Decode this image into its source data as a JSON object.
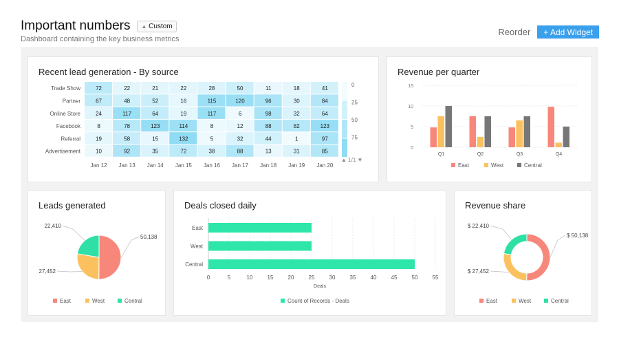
{
  "header": {
    "title": "Important numbers",
    "badge": "Custom",
    "badge_icon": "user-icon",
    "subtitle": "Dashboard containing the key business metrics",
    "reorder_label": "Reorder",
    "add_widget_label": "+ Add Widget",
    "accent": "#3aa0ec"
  },
  "widgets": {
    "heatmap": {
      "title": "Recent lead generation - By source",
      "pager": "1/1"
    },
    "quarter": {
      "title": "Revenue per quarter"
    },
    "leads": {
      "title": "Leads generated"
    },
    "deals": {
      "title": "Deals closed daily"
    },
    "share": {
      "title": "Revenue share"
    }
  },
  "chart_data": [
    {
      "type": "heatmap",
      "rows": [
        "Trade Show",
        "Partner",
        "Online Store",
        "Facebook",
        "Referral",
        "Advertisement"
      ],
      "columns": [
        "Jan 12",
        "Jan 13",
        "Jan 14",
        "Jan 15",
        "Jan 16",
        "Jan 17",
        "Jan 18",
        "Jan 19",
        "Jan 20"
      ],
      "values": [
        [
          72,
          22,
          21,
          22,
          28,
          50,
          11,
          18,
          41
        ],
        [
          67,
          48,
          52,
          16,
          115,
          120,
          96,
          30,
          84
        ],
        [
          24,
          117,
          64,
          19,
          117,
          6,
          98,
          32,
          64
        ],
        [
          8,
          78,
          123,
          114,
          8,
          12,
          88,
          82,
          123
        ],
        [
          19,
          58,
          15,
          132,
          5,
          32,
          44,
          1,
          97
        ],
        [
          10,
          92,
          35,
          72,
          38,
          88,
          13,
          31,
          85
        ]
      ],
      "scale_labels": [
        "0",
        "25",
        "50",
        "75"
      ],
      "colors": [
        "#f2fbfe",
        "#8fdcf4"
      ]
    },
    {
      "type": "bar",
      "categories": [
        "Q1",
        "Q2",
        "Q3",
        "Q4"
      ],
      "ylim": [
        0,
        15
      ],
      "yticks": [
        0,
        5,
        10,
        15
      ],
      "grid": true,
      "legend": "bottom",
      "series": [
        {
          "name": "East",
          "color": "#f8877b",
          "values": [
            4.8,
            7.5,
            4.8,
            9.8
          ]
        },
        {
          "name": "West",
          "color": "#fbc15e",
          "values": [
            7.5,
            2.5,
            6.5,
            1.1
          ]
        },
        {
          "name": "Central",
          "color": "#777777",
          "values": [
            10,
            7.5,
            7.5,
            5
          ]
        }
      ]
    },
    {
      "type": "pie",
      "legend": "bottom",
      "slices": [
        {
          "name": "East",
          "value": 50138,
          "label": "50,138",
          "color": "#f8877b"
        },
        {
          "name": "West",
          "value": 27452,
          "label": "27,452",
          "color": "#fbc15e"
        },
        {
          "name": "Central",
          "value": 22410,
          "label": "22,410",
          "color": "#2ee0a6"
        }
      ]
    },
    {
      "type": "bar",
      "orientation": "horizontal",
      "categories": [
        "East",
        "West",
        "Central"
      ],
      "values": [
        25,
        25,
        50
      ],
      "xlim": [
        0,
        55
      ],
      "xticks": [
        0,
        5,
        10,
        15,
        20,
        25,
        30,
        35,
        40,
        45,
        50,
        55
      ],
      "xlabel": "Deals",
      "series_name": "Count of Records - Deals",
      "color": "#2ee6aa",
      "legend": "bottom"
    },
    {
      "type": "pie",
      "donut": true,
      "legend": "bottom",
      "slices": [
        {
          "name": "East",
          "value": 50138,
          "label": "$ 50,138",
          "color": "#f8877b"
        },
        {
          "name": "West",
          "value": 27452,
          "label": "$ 27,452",
          "color": "#fbc15e"
        },
        {
          "name": "Central",
          "value": 22410,
          "label": "$ 22,410",
          "color": "#2ee0a6"
        }
      ]
    }
  ]
}
